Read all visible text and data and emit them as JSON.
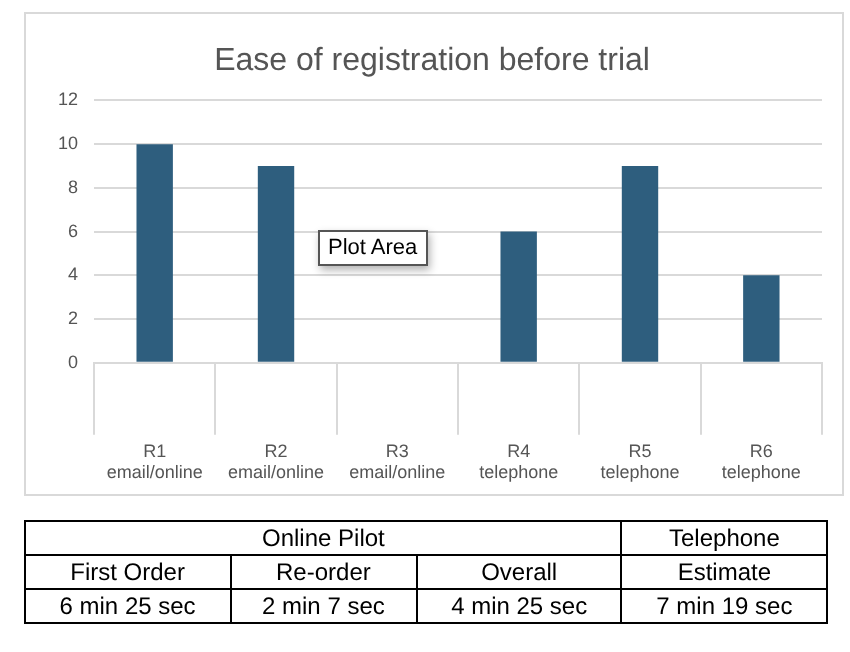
{
  "chart_data": {
    "type": "bar",
    "title": "Ease of registration before trial",
    "categories": [
      "R1\nemail/online",
      "R2\nemail/online",
      "R3\nemail/online",
      "R4\ntelephone",
      "R5\ntelephone",
      "R6\ntelephone"
    ],
    "values": [
      10,
      9,
      0,
      6,
      9,
      4
    ],
    "color": "#2e5e7e",
    "ylim": [
      0,
      12
    ],
    "yticks": [
      0,
      2,
      4,
      6,
      8,
      10,
      12
    ],
    "grid": "y",
    "annotations": [
      "Plot Area",
      "Online Pilot",
      "Telephone",
      "First Order",
      "Re-order",
      "Overall",
      "Estimate",
      "6 min 25 sec",
      "2 min 7 sec",
      "4 min 25 sec",
      "7 min 19 sec"
    ]
  }
}
